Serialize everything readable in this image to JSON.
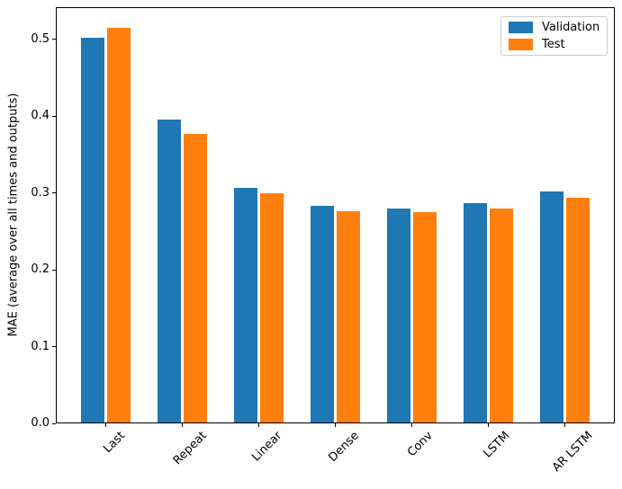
{
  "figure": {
    "background": "#ffffff",
    "axis_color": "#000000",
    "legend_border_color": "#cccccc"
  },
  "chart_data": {
    "type": "bar",
    "title": "",
    "xlabel": "",
    "ylabel": "MAE (average over all times and outputs)",
    "categories": [
      "Last",
      "Repeat",
      "Linear",
      "Dense",
      "Conv",
      "LSTM",
      "AR LSTM"
    ],
    "series": [
      {
        "name": "Validation",
        "color": "#1f77b4",
        "values": [
          0.5024,
          0.3959,
          0.3064,
          0.2831,
          0.2802,
          0.2866,
          0.3019
        ]
      },
      {
        "name": "Test",
        "color": "#ff7f0e",
        "values": [
          0.5153,
          0.3774,
          0.2997,
          0.2768,
          0.2746,
          0.2799,
          0.2941
        ]
      }
    ],
    "ylim": [
      0,
      0.542
    ],
    "yticks": [
      0.0,
      0.1,
      0.2,
      0.3,
      0.4,
      0.5
    ],
    "xlim": [
      -0.652,
      6.652
    ],
    "bar_width_units": 0.3,
    "bar_offset_units": 0.17,
    "xtick_rotation": 45,
    "grid": false,
    "legend_position": "upper right"
  }
}
